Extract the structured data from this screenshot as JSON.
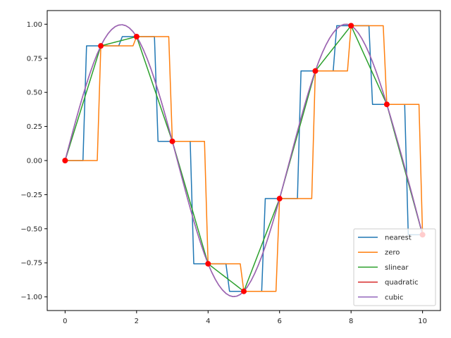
{
  "chart_data": {
    "type": "line",
    "title": "",
    "xlabel": "",
    "ylabel": "",
    "xlim": [
      -0.5,
      10.5
    ],
    "ylim": [
      -1.1,
      1.1
    ],
    "grid": false,
    "legend_position": "lower right",
    "x_ticks": [
      0,
      2,
      4,
      6,
      8,
      10
    ],
    "x_tick_labels": [
      "0",
      "2",
      "4",
      "6",
      "8",
      "10"
    ],
    "y_ticks": [
      1.0,
      0.75,
      0.5,
      0.25,
      0.0,
      -0.25,
      -0.5,
      -0.75,
      -1.0
    ],
    "y_tick_labels": [
      "1.00",
      "0.75",
      "0.50",
      "0.25",
      "0.00",
      "−0.25",
      "−0.50",
      "−0.75",
      "−1.00"
    ],
    "sample_points": {
      "x": [
        0,
        1,
        2,
        3,
        4,
        5,
        6,
        7,
        8,
        9,
        10
      ],
      "y": [
        0.0,
        0.841,
        0.909,
        0.141,
        -0.757,
        -0.959,
        -0.279,
        0.657,
        0.989,
        0.412,
        -0.544
      ],
      "color": "#ff0000",
      "marker": "circle"
    },
    "dense_x_range": [
      0,
      10
    ],
    "dense_x_count": 101,
    "series": [
      {
        "name": "nearest",
        "color": "#1f77b4",
        "kind": "nearest"
      },
      {
        "name": "zero",
        "color": "#ff7f0e",
        "kind": "zero"
      },
      {
        "name": "slinear",
        "color": "#2ca02c",
        "kind": "linear"
      },
      {
        "name": "quadratic",
        "color": "#d62728",
        "kind": "smooth"
      },
      {
        "name": "cubic",
        "color": "#9467bd",
        "kind": "smooth"
      }
    ]
  },
  "legend": {
    "items": [
      "nearest",
      "zero",
      "slinear",
      "quadratic",
      "cubic"
    ]
  }
}
